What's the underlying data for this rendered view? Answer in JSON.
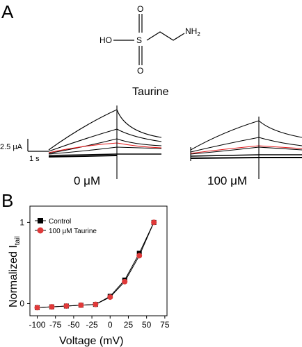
{
  "panel_a": {
    "label": "A",
    "molecule": {
      "atoms": {
        "ho": "HO",
        "s": "S",
        "o_top": "O",
        "o_bottom": "O",
        "nh2_base": "NH",
        "nh2_sub": "2"
      },
      "name": "Taurine"
    },
    "scale_bar": {
      "current": "2.5 μA",
      "time": "1 s"
    },
    "traces": [
      {
        "label": "0 μM"
      },
      {
        "label": "100 μM"
      }
    ],
    "colors": {
      "trace": "#000000",
      "highlight_trace": "#e41a1c"
    }
  },
  "panel_b": {
    "label": "B",
    "chart_data": {
      "type": "line",
      "xlabel": "Voltage (mV)",
      "ylabel": {
        "base": "Normalized I",
        "sub": "tail"
      },
      "xlim": [
        -110,
        78
      ],
      "ylim": [
        -0.15,
        1.2
      ],
      "x_ticks": [
        -100,
        -75,
        -50,
        -25,
        0,
        25,
        50,
        75
      ],
      "x_tick_labels": [
        "-100",
        "-75",
        "-50",
        "-25",
        "0",
        "25",
        "50",
        "75"
      ],
      "y_ticks": [
        0,
        1
      ],
      "y_tick_labels": [
        "0",
        "1"
      ],
      "legend_position": "top-left",
      "series": [
        {
          "name": "Control",
          "color": "#000000",
          "marker": "square",
          "x": [
            -100,
            -80,
            -60,
            -40,
            -20,
            0,
            20,
            40,
            60
          ],
          "y": [
            -0.05,
            -0.04,
            -0.03,
            -0.02,
            -0.01,
            0.09,
            0.29,
            0.62,
            1.0
          ]
        },
        {
          "name": "100 μM Taurine",
          "color": "#e03a3a",
          "marker": "circle",
          "x": [
            -100,
            -80,
            -60,
            -40,
            -20,
            0,
            20,
            40,
            60
          ],
          "y": [
            -0.05,
            -0.04,
            -0.03,
            -0.02,
            -0.01,
            0.08,
            0.27,
            0.59,
            1.0
          ]
        }
      ]
    }
  }
}
